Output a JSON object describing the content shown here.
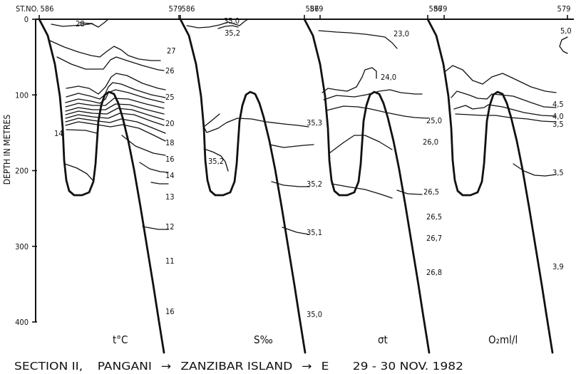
{
  "chart_data": {
    "type": "contour-section",
    "title": "SECTION II, PANGANI → ZANZIBAR ISLAND → E 29 - 30 NOV. 1982",
    "title_parts": {
      "section": "SECTION II,",
      "route": [
        "PANGANI",
        "ZANZIBAR ISLAND",
        "E"
      ],
      "date": "29 - 30 NOV. 1982"
    },
    "ylabel": "DEPTH IN METRES",
    "ylim": [
      0,
      400
    ],
    "y_ticks": [
      0,
      100,
      200,
      300,
      400
    ],
    "y_tick_labels": [
      "0",
      "100",
      "200",
      "300",
      "400"
    ],
    "station_prefix": "ST.NO.",
    "stations": [
      "586",
      "579"
    ],
    "panels": [
      {
        "parameter": "t°C",
        "contour_labels": [
          "28",
          "27",
          "26",
          "25",
          "20",
          "18",
          "16",
          "14",
          "13",
          "12",
          "11",
          "16",
          "14"
        ]
      },
      {
        "parameter": "S‰",
        "contour_labels": [
          "35,0",
          "35,2",
          "35,3",
          "35,2",
          "35,2",
          "35,1",
          "35,0"
        ]
      },
      {
        "parameter": "σt",
        "contour_labels": [
          "23,0",
          "24,0",
          "25,0",
          "26,0",
          "26,5",
          "26,5",
          "26,7",
          "26,8"
        ]
      },
      {
        "parameter": "O₂ml/l",
        "contour_labels": [
          "5,0",
          "4,5",
          "4,0",
          "3,5",
          "3,5",
          "3,9"
        ]
      }
    ]
  }
}
